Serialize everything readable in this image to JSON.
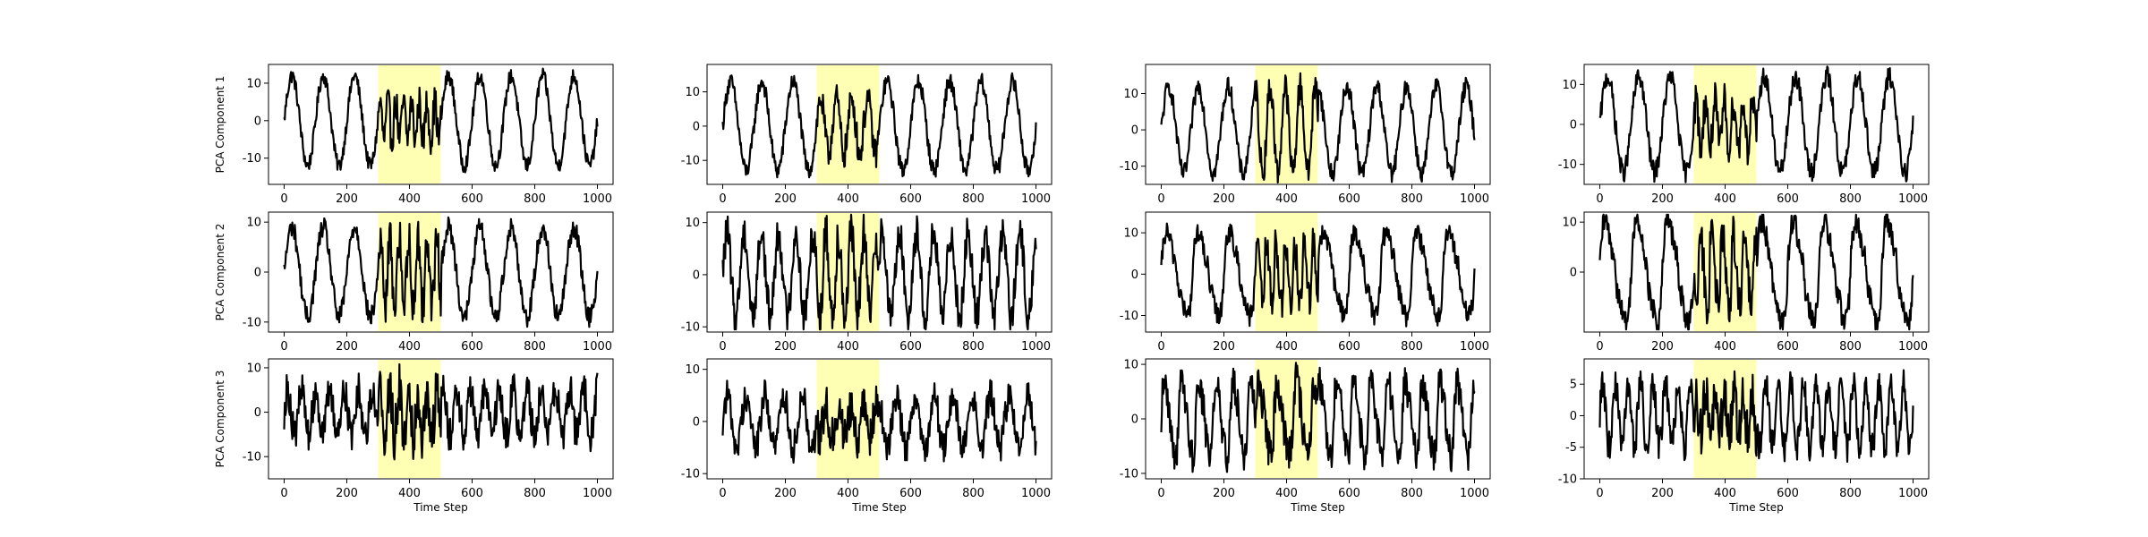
{
  "chart_data": {
    "type": "line",
    "rows": 3,
    "cols": 4,
    "colors": {
      "line": "#000000",
      "highlight": "#ffffb3",
      "frame": "#000000"
    },
    "ylabels": [
      "PCA Component 1",
      "PCA Component 2",
      "PCA Component 3"
    ],
    "xlabel": "Time Step",
    "x_range": [
      0,
      1000
    ],
    "x_ticks": [
      0,
      200,
      400,
      600,
      800,
      1000
    ],
    "highlight_span": [
      300,
      500
    ],
    "grid": false,
    "subplots": [
      {
        "row": 0,
        "col": 0,
        "ylim": [
          -17,
          15
        ],
        "yticks": [
          -10,
          0,
          10
        ],
        "amp": 12,
        "period": 100,
        "noise": 2.0,
        "wave": "sine",
        "anom_amp": 5,
        "anom_period": 25,
        "anom_noise": 4.5
      },
      {
        "row": 0,
        "col": 1,
        "ylim": [
          -17,
          18
        ],
        "yticks": [
          -10,
          0,
          10
        ],
        "amp": 13,
        "period": 100,
        "noise": 2.5,
        "wave": "sine",
        "anom_amp": 8,
        "anom_period": 50,
        "anom_noise": 4.5
      },
      {
        "row": 0,
        "col": 2,
        "ylim": [
          -15,
          18
        ],
        "yticks": [
          -10,
          0,
          10
        ],
        "amp": 12,
        "period": 95,
        "noise": 2.5,
        "wave": "sine",
        "anom_amp": 12,
        "anom_period": 48,
        "anom_noise": 4.0
      },
      {
        "row": 0,
        "col": 3,
        "ylim": [
          -15,
          15
        ],
        "yticks": [
          -10,
          0,
          10
        ],
        "amp": 12,
        "period": 100,
        "noise": 2.5,
        "wave": "sine",
        "anom_amp": 6,
        "anom_period": 30,
        "anom_noise": 4.5
      },
      {
        "row": 1,
        "col": 0,
        "ylim": [
          -12,
          12
        ],
        "yticks": [
          -10,
          0,
          10
        ],
        "amp": 9,
        "period": 100,
        "noise": 2.0,
        "wave": "sine",
        "anom_amp": 7,
        "anom_period": 30,
        "anom_noise": 4.0
      },
      {
        "row": 1,
        "col": 1,
        "ylim": [
          -11,
          12
        ],
        "yticks": [
          -10,
          0,
          10
        ],
        "amp": 8,
        "period": 55,
        "noise": 3.5,
        "wave": "sine",
        "anom_amp": 8,
        "anom_period": 40,
        "anom_noise": 4.5
      },
      {
        "row": 1,
        "col": 2,
        "ylim": [
          -14,
          15
        ],
        "yticks": [
          -10,
          0,
          10
        ],
        "amp": 9,
        "period": 100,
        "noise": 2.5,
        "wave": "spike",
        "anom_amp": 7,
        "anom_period": 30,
        "anom_noise": 4.0
      },
      {
        "row": 1,
        "col": 3,
        "ylim": [
          -12,
          12
        ],
        "yticks": [
          0,
          10
        ],
        "amp": 9,
        "period": 100,
        "noise": 2.5,
        "wave": "spike",
        "anom_amp": 7,
        "anom_period": 35,
        "anom_noise": 4.0
      },
      {
        "row": 2,
        "col": 0,
        "ylim": [
          -15,
          12
        ],
        "yticks": [
          -10,
          0,
          10
        ],
        "amp": 5,
        "period": 45,
        "noise": 4.0,
        "wave": "sine",
        "anom_amp": 5,
        "anom_period": 30,
        "anom_noise": 6.0
      },
      {
        "row": 2,
        "col": 1,
        "ylim": [
          -11,
          12
        ],
        "yticks": [
          -10,
          0,
          10
        ],
        "amp": 5,
        "period": 60,
        "noise": 3.0,
        "wave": "sine",
        "anom_amp": 3,
        "anom_period": 40,
        "anom_noise": 4.0
      },
      {
        "row": 2,
        "col": 2,
        "ylim": [
          -11,
          11
        ],
        "yticks": [
          -10,
          0,
          10
        ],
        "amp": 6,
        "period": 55,
        "noise": 3.0,
        "wave": "spike",
        "anom_amp": 6,
        "anom_period": 60,
        "anom_noise": 3.5
      },
      {
        "row": 2,
        "col": 3,
        "ylim": [
          -10,
          9
        ],
        "yticks": [
          -10,
          -5,
          0,
          5
        ],
        "amp": 5,
        "period": 40,
        "noise": 2.5,
        "wave": "sine",
        "anom_amp": 3,
        "anom_period": 30,
        "anom_noise": 4.5
      }
    ]
  }
}
